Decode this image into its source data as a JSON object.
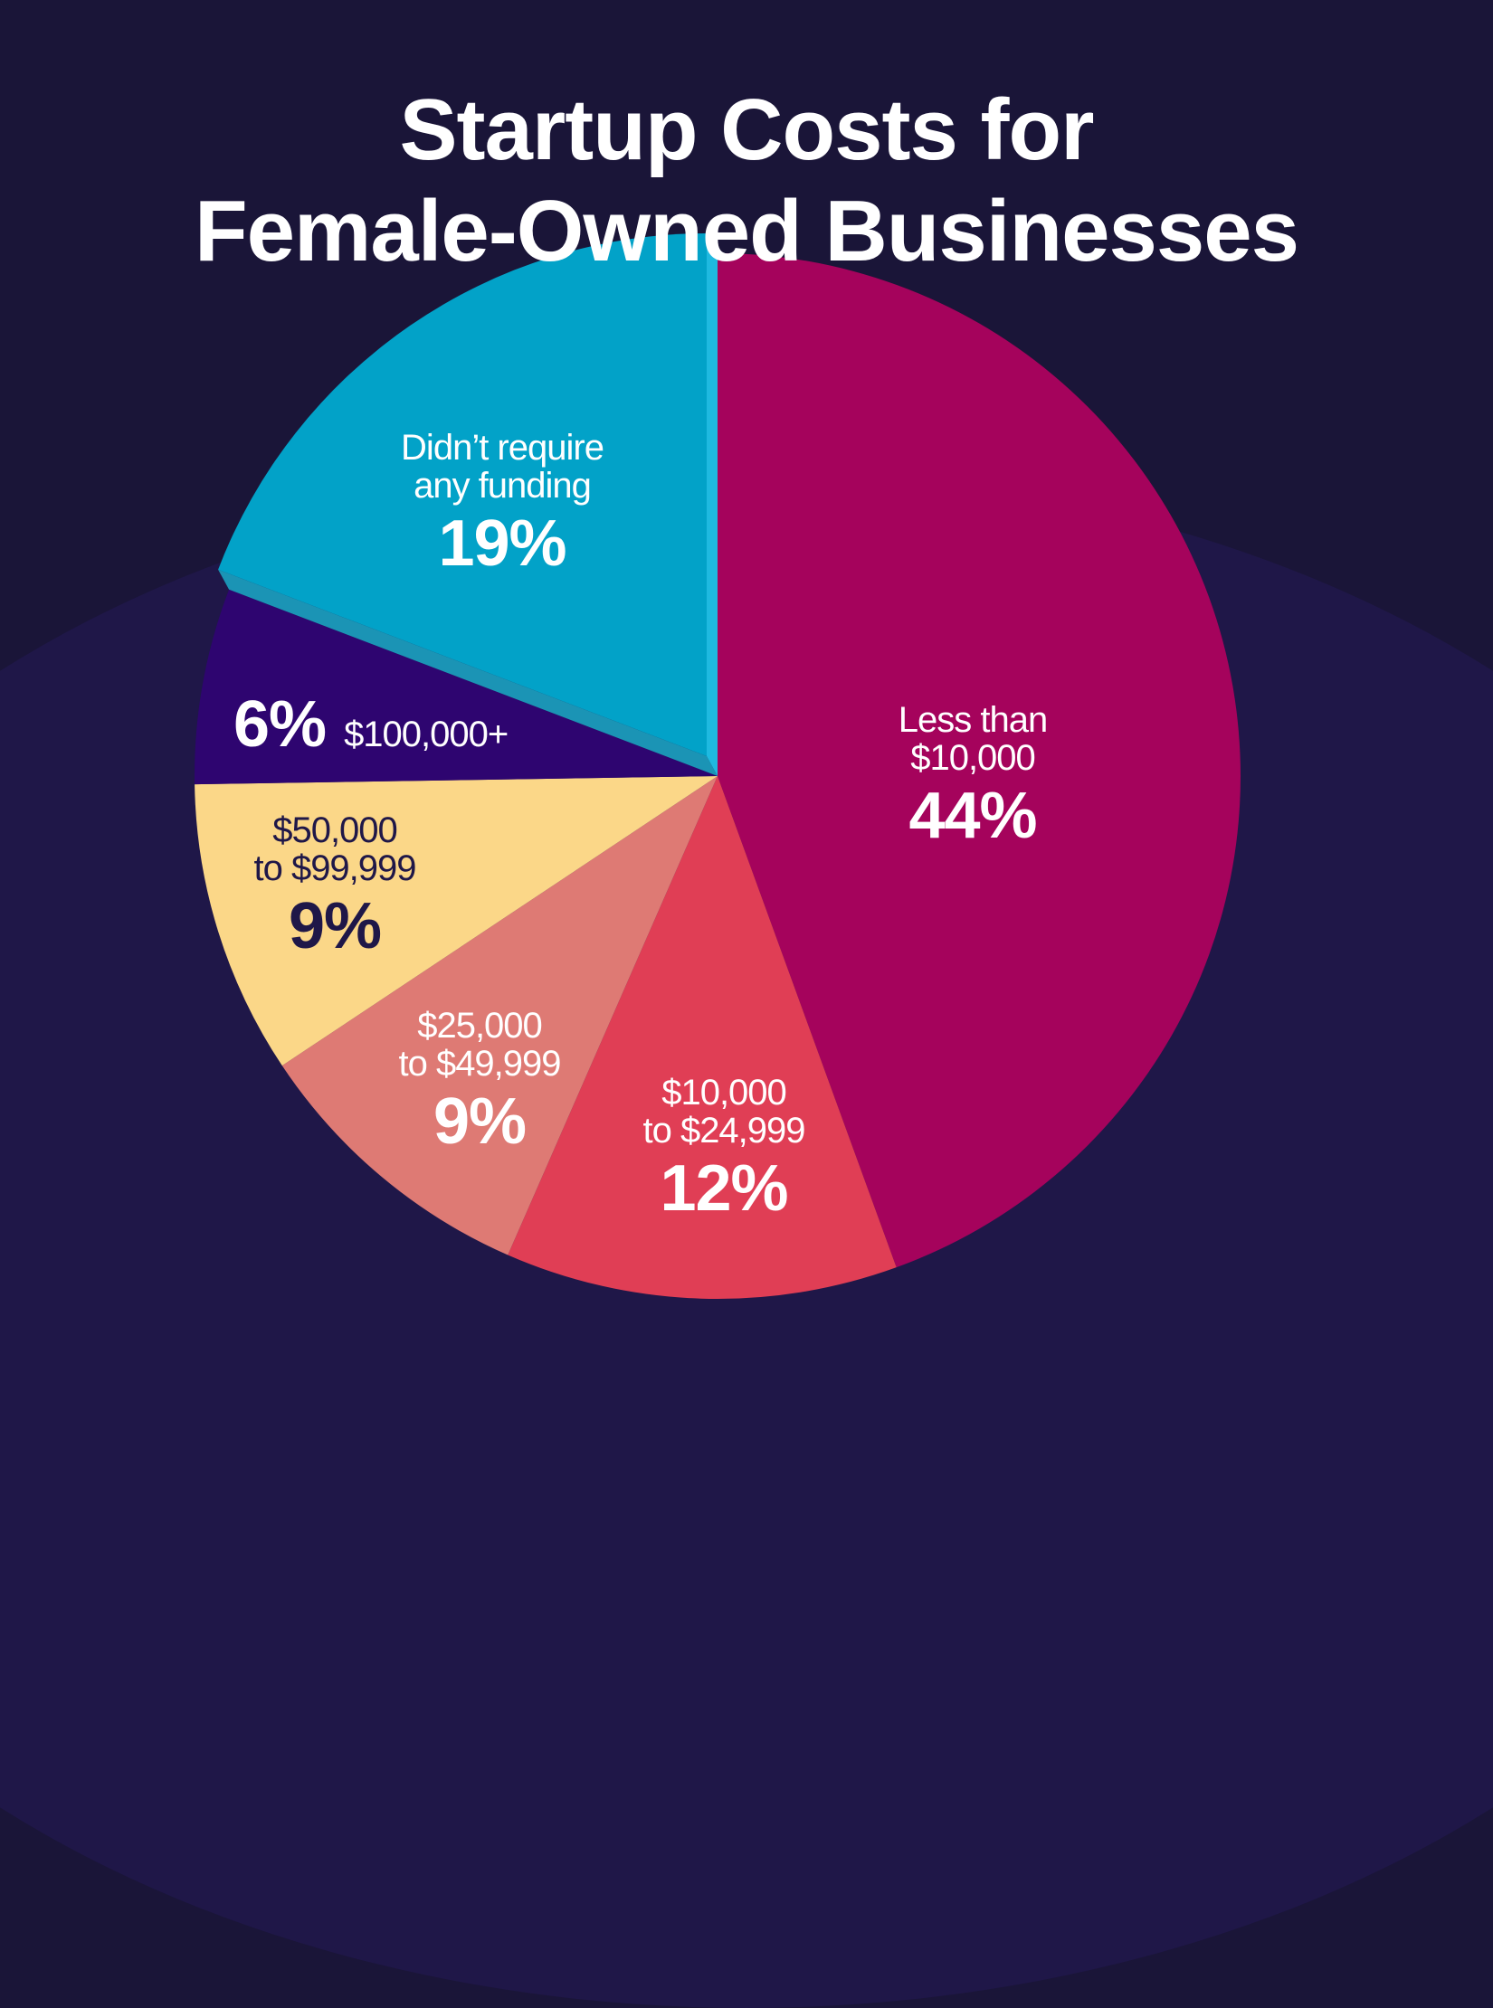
{
  "title": {
    "line1": "Startup Costs for",
    "line2": "Female-Owned Businesses"
  },
  "colors": {
    "background": "#1a1538",
    "background_light": "#1f1748"
  },
  "chart_data": {
    "type": "pie",
    "title": "Startup Costs for Female-Owned Businesses",
    "categories": [
      "Less than $10,000",
      "$10,000 to $24,999",
      "$25,000 to $49,999",
      "$50,000 to $99,999",
      "$100,000+",
      "Didn't require any funding"
    ],
    "values": [
      44,
      12,
      9,
      9,
      6,
      19
    ],
    "unit": "%",
    "slices": [
      {
        "label_line1": "Less than",
        "label_line2": "$10,000",
        "value": 44,
        "pct": "44%",
        "color": "#a5035c"
      },
      {
        "label_line1": "$10,000",
        "label_line2": "to $24,999",
        "value": 12,
        "pct": "12%",
        "color": "#e03e55"
      },
      {
        "label_line1": "$25,000",
        "label_line2": "to $49,999",
        "value": 9,
        "pct": "9%",
        "color": "#de7a74"
      },
      {
        "label_line1": "$50,000",
        "label_line2": "to $99,999",
        "value": 9,
        "pct": "9%",
        "color": "#fbd788"
      },
      {
        "label_line1": "$100,000+",
        "label_line2": "",
        "value": 6,
        "pct": "6%",
        "color": "#2e0570"
      },
      {
        "label_line1": "Didn’t require",
        "label_line2": "any funding",
        "value": 19,
        "pct": "19%",
        "color": "#02a2c8"
      }
    ],
    "legend": "none (direct labels)",
    "start_angle": "12 o'clock, clockwise",
    "exploded_slice": "Didn't require any funding"
  }
}
